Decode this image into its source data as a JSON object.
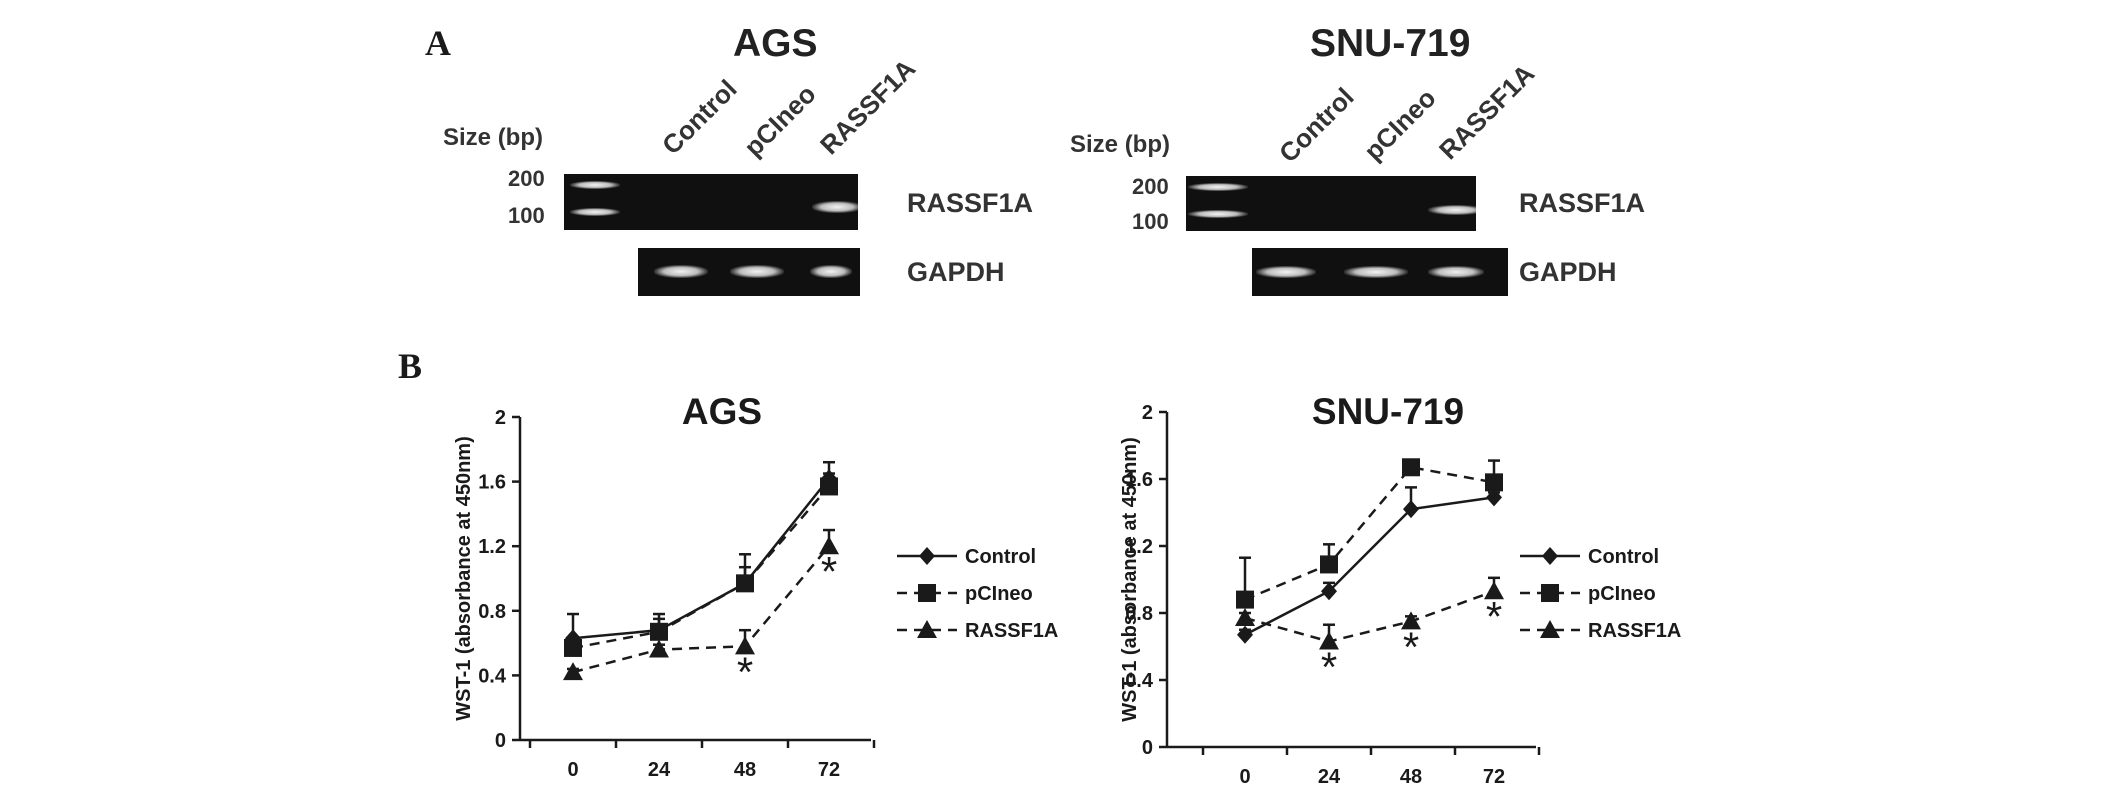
{
  "panel_a": {
    "letter": "A",
    "size_label": "Size (bp)",
    "marker_200": "200",
    "marker_100": "100",
    "lanes": [
      "Control",
      "pCIneo",
      "RASSF1A"
    ],
    "gene_rassf1a": "RASSF1A",
    "gene_gapdh": "GAPDH",
    "left_title": "AGS",
    "right_title": "SNU-719"
  },
  "panel_b": {
    "letter": "B"
  },
  "chart_data": [
    {
      "type": "line",
      "title": "AGS",
      "ylabel": "WST-1 (absorbance at 450nm)",
      "xlabel": "",
      "categories": [
        "0",
        "24",
        "48",
        "72"
      ],
      "yticks": [
        "0",
        "0.4",
        "0.8",
        "1.2",
        "1.6",
        "2"
      ],
      "ylim": [
        0,
        2
      ],
      "grid": false,
      "legend": "right",
      "series": [
        {
          "name": "Control",
          "marker": "diamond",
          "dash": "solid",
          "values": [
            0.63,
            0.68,
            0.97,
            1.62
          ],
          "err": [
            0.15,
            0.1,
            0.18,
            0.1
          ]
        },
        {
          "name": "pCIneo",
          "marker": "square",
          "dash": "dashed",
          "values": [
            0.57,
            0.67,
            0.97,
            1.57
          ],
          "err": [
            0.05,
            0.08,
            0.1,
            0.08
          ]
        },
        {
          "name": "RASSF1A",
          "marker": "triangle",
          "dash": "dashed",
          "values": [
            0.42,
            0.56,
            0.58,
            1.2
          ],
          "err": [
            0.02,
            0.03,
            0.1,
            0.1
          ]
        }
      ],
      "annotations": [
        {
          "x": "48",
          "text": "*"
        },
        {
          "x": "72",
          "text": "*"
        }
      ]
    },
    {
      "type": "line",
      "title": "SNU-719",
      "ylabel": "WST-1 (absorbance at 450nm)",
      "xlabel": "",
      "categories": [
        "0",
        "24",
        "48",
        "72"
      ],
      "yticks": [
        "0",
        "0.4",
        "0.8",
        "1.2",
        "1.6",
        "2"
      ],
      "ylim": [
        0,
        2
      ],
      "grid": false,
      "legend": "right",
      "series": [
        {
          "name": "Control",
          "marker": "diamond",
          "dash": "solid",
          "values": [
            0.67,
            0.93,
            1.42,
            1.49
          ],
          "err": [
            0.03,
            0.05,
            0.13,
            0.03
          ]
        },
        {
          "name": "pCIneo",
          "marker": "square",
          "dash": "dashed",
          "values": [
            0.88,
            1.09,
            1.67,
            1.58
          ],
          "err": [
            0.25,
            0.12,
            0.03,
            0.13
          ]
        },
        {
          "name": "RASSF1A",
          "marker": "triangle",
          "dash": "dashed",
          "values": [
            0.77,
            0.63,
            0.75,
            0.93
          ],
          "err": [
            0.03,
            0.1,
            0.03,
            0.08
          ]
        }
      ],
      "annotations": [
        {
          "x": "24",
          "text": "*"
        },
        {
          "x": "48",
          "text": "*"
        },
        {
          "x": "72",
          "text": "*"
        }
      ]
    }
  ]
}
